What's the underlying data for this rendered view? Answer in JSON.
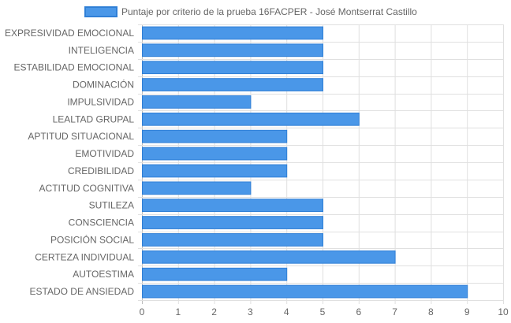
{
  "chart_data": {
    "type": "bar",
    "orientation": "horizontal",
    "categories": [
      "EXPRESIVIDAD EMOCIONAL",
      "INTELIGENCIA",
      "ESTABILIDAD EMOCIONAL",
      "DOMINACIÓN",
      "IMPULSIVIDAD",
      "LEALTAD GRUPAL",
      "APTITUD SITUACIONAL",
      "EMOTIVIDAD",
      "CREDIBILIDAD",
      "ACTITUD COGNITIVA",
      "SUTILEZA",
      "CONSCIENCIA",
      "POSICIÓN SOCIAL",
      "CERTEZA INDIVIDUAL",
      "AUTOESTIMA",
      "ESTADO DE ANSIEDAD"
    ],
    "series": [
      {
        "name": "Puntaje por criterio de la prueba 16FACPER - José Montserrat Castillo",
        "values": [
          5,
          5,
          5,
          5,
          3,
          6,
          4,
          4,
          4,
          3,
          5,
          5,
          5,
          7,
          4,
          9
        ]
      }
    ],
    "xlim": [
      0,
      10
    ],
    "ticks": [
      0,
      1,
      2,
      3,
      4,
      5,
      6,
      7,
      8,
      9,
      10
    ],
    "grid": true,
    "legend_position": "top",
    "colors": {
      "bar_fill": "#4a97e8",
      "bar_stroke": "#2f7fd6",
      "grid": "#e0e0e0",
      "text": "#666666"
    }
  }
}
